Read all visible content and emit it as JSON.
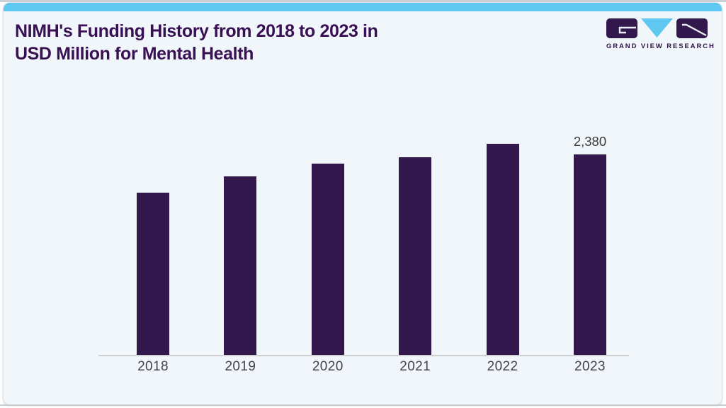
{
  "page": {
    "title_line1": "NIMH's Funding History from 2018 to 2023 in",
    "title_line2": "USD Million for Mental Health"
  },
  "logo": {
    "icon": "gvr-logo-icon",
    "text": "GRAND VIEW RESEARCH"
  },
  "colors": {
    "accent_blue": "#5FC8F0",
    "bar_purple": "#33184D",
    "title_purple": "#3A1055",
    "card_background": "#F0F6FA",
    "axis_line_gray": "#D0D0D0",
    "label_gray": "#48424A",
    "logo_purple": "#33184D"
  },
  "chart_data": {
    "type": "bar",
    "title": "NIMH's Funding History from 2018 to 2023 in USD Million for Mental Health",
    "categories": [
      "2018",
      "2019",
      "2020",
      "2021",
      "2022",
      "2023"
    ],
    "values": [
      1750,
      1920,
      2060,
      2130,
      2270,
      2380
    ],
    "data_labels": [
      "",
      "",
      "",
      "",
      "",
      "2,380"
    ],
    "xlabel": "",
    "ylabel": "",
    "units": "USD Million",
    "ylim": [
      0,
      2380
    ],
    "grid": false,
    "legend": false,
    "y_axis_hidden": true,
    "bar_color": "#33184D"
  }
}
